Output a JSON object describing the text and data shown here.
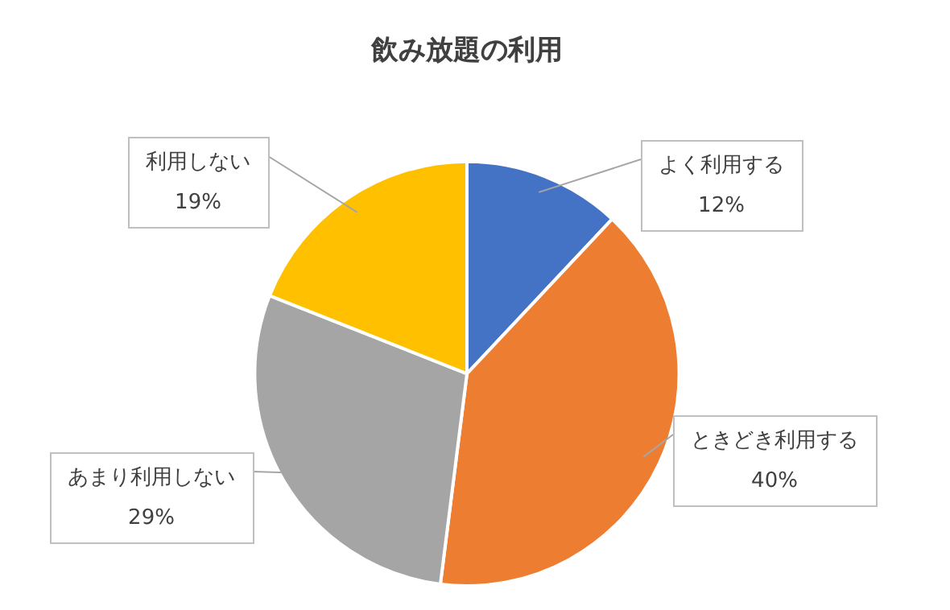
{
  "chart_data": {
    "type": "pie",
    "title": "飲み放題の利用",
    "categories": [
      "よく利用する",
      "ときどき利用する",
      "あまり利用しない",
      "利用しない"
    ],
    "values": [
      12,
      40,
      29,
      19
    ],
    "value_labels": [
      "12%",
      "40%",
      "29%",
      "19%"
    ],
    "colors": [
      "#4472c4",
      "#ed7d31",
      "#a5a5a5",
      "#ffc000"
    ],
    "legend": false
  }
}
